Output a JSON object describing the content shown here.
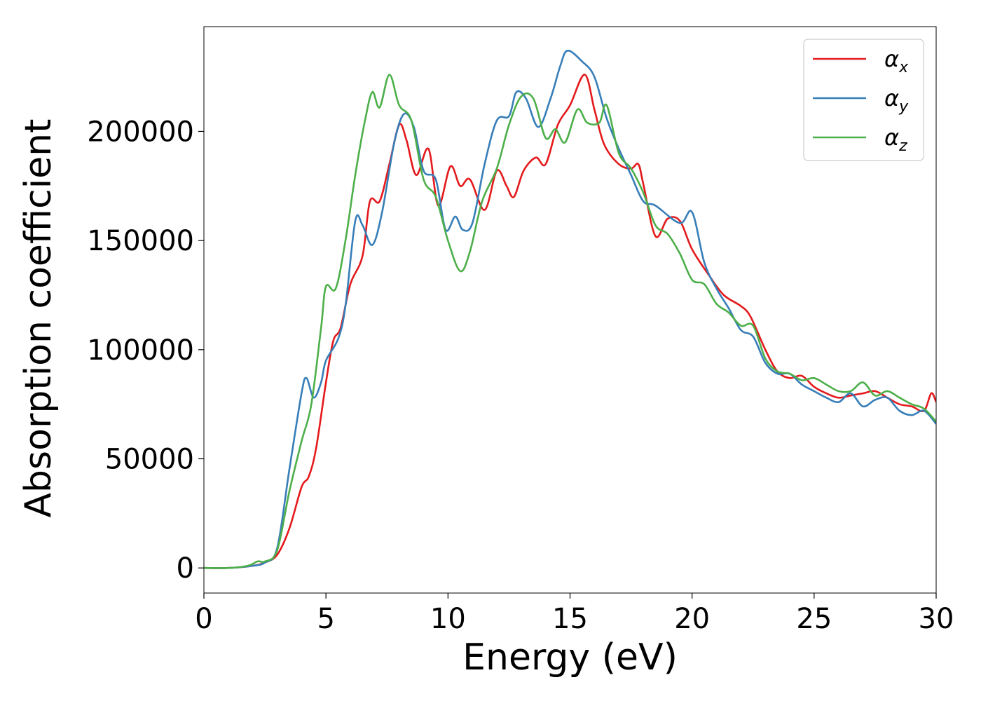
{
  "chart_data": {
    "type": "line",
    "xlabel": "Energy (eV)",
    "ylabel": "Absorption coefficient",
    "xlim": [
      0,
      30
    ],
    "ylim": [
      -11500,
      248000
    ],
    "xticks": [
      0,
      5,
      10,
      15,
      20,
      25,
      30
    ],
    "xtick_labels": [
      "0",
      "5",
      "10",
      "15",
      "20",
      "25",
      "30"
    ],
    "yticks": [
      0,
      50000,
      100000,
      150000,
      200000
    ],
    "ytick_labels": [
      "0",
      "50000",
      "100000",
      "150000",
      "200000"
    ],
    "grid": false,
    "legend_position": "top-right",
    "series": [
      {
        "name": "αx",
        "legend_main": "α",
        "legend_sub": "x",
        "color": "#e41a1c",
        "points": [
          [
            0,
            0
          ],
          [
            1,
            0
          ],
          [
            2,
            1000
          ],
          [
            2.5,
            2500
          ],
          [
            3,
            6000
          ],
          [
            3.5,
            18000
          ],
          [
            4,
            37000
          ],
          [
            4.3,
            42000
          ],
          [
            4.6,
            55000
          ],
          [
            5,
            85000
          ],
          [
            5.3,
            104000
          ],
          [
            5.6,
            110000
          ],
          [
            6,
            130000
          ],
          [
            6.5,
            143000
          ],
          [
            6.8,
            168000
          ],
          [
            7.2,
            168000
          ],
          [
            7.6,
            185000
          ],
          [
            8,
            203000
          ],
          [
            8.3,
            196000
          ],
          [
            8.7,
            180000
          ],
          [
            9.2,
            192000
          ],
          [
            9.6,
            166000
          ],
          [
            10.1,
            184000
          ],
          [
            10.5,
            175000
          ],
          [
            10.9,
            178000
          ],
          [
            11.5,
            164000
          ],
          [
            12,
            182000
          ],
          [
            12.4,
            175000
          ],
          [
            12.7,
            170000
          ],
          [
            13.1,
            182000
          ],
          [
            13.6,
            188000
          ],
          [
            14,
            185000
          ],
          [
            14.5,
            203000
          ],
          [
            15,
            212000
          ],
          [
            15.6,
            226000
          ],
          [
            16,
            210000
          ],
          [
            16.4,
            194000
          ],
          [
            17,
            185000
          ],
          [
            17.5,
            183000
          ],
          [
            17.8,
            185000
          ],
          [
            18,
            176000
          ],
          [
            18.5,
            152000
          ],
          [
            19,
            160000
          ],
          [
            19.5,
            159000
          ],
          [
            20,
            146000
          ],
          [
            20.7,
            134000
          ],
          [
            21.3,
            125000
          ],
          [
            22,
            120000
          ],
          [
            22.4,
            115000
          ],
          [
            23,
            100000
          ],
          [
            23.5,
            90000
          ],
          [
            24,
            87000
          ],
          [
            24.5,
            88000
          ],
          [
            25,
            83000
          ],
          [
            25.5,
            80000
          ],
          [
            26,
            78000
          ],
          [
            26.5,
            79000
          ],
          [
            27,
            80000
          ],
          [
            27.5,
            81000
          ],
          [
            28,
            78000
          ],
          [
            28.5,
            75000
          ],
          [
            29,
            74000
          ],
          [
            29.5,
            72000
          ],
          [
            29.8,
            80000
          ],
          [
            30,
            76000
          ]
        ]
      },
      {
        "name": "αy",
        "legend_main": "α",
        "legend_sub": "y",
        "color": "#377eb8",
        "points": [
          [
            0,
            0
          ],
          [
            1,
            0
          ],
          [
            2,
            1000
          ],
          [
            2.5,
            2500
          ],
          [
            3,
            9000
          ],
          [
            3.5,
            45000
          ],
          [
            4,
            80000
          ],
          [
            4.2,
            87000
          ],
          [
            4.5,
            78000
          ],
          [
            4.8,
            85000
          ],
          [
            5,
            95000
          ],
          [
            5.5,
            105000
          ],
          [
            5.8,
            120000
          ],
          [
            6.2,
            159000
          ],
          [
            6.5,
            157000
          ],
          [
            6.9,
            148000
          ],
          [
            7.3,
            163000
          ],
          [
            7.8,
            195000
          ],
          [
            8.2,
            208000
          ],
          [
            8.6,
            202000
          ],
          [
            9,
            182000
          ],
          [
            9.5,
            178000
          ],
          [
            9.9,
            155000
          ],
          [
            10.3,
            161000
          ],
          [
            10.6,
            155000
          ],
          [
            11,
            158000
          ],
          [
            11.5,
            185000
          ],
          [
            12,
            205000
          ],
          [
            12.5,
            207000
          ],
          [
            12.8,
            218000
          ],
          [
            13.2,
            215000
          ],
          [
            13.7,
            202000
          ],
          [
            14.2,
            215000
          ],
          [
            14.6,
            230000
          ],
          [
            14.9,
            237000
          ],
          [
            15.5,
            232000
          ],
          [
            16,
            225000
          ],
          [
            16.5,
            206000
          ],
          [
            17,
            192000
          ],
          [
            17.5,
            180000
          ],
          [
            18,
            168000
          ],
          [
            18.5,
            166000
          ],
          [
            19.5,
            158000
          ],
          [
            20,
            163000
          ],
          [
            20.5,
            140000
          ],
          [
            21,
            128000
          ],
          [
            21.5,
            119000
          ],
          [
            22,
            109000
          ],
          [
            22.5,
            106000
          ],
          [
            23,
            94000
          ],
          [
            23.5,
            89000
          ],
          [
            24,
            89000
          ],
          [
            24.5,
            84000
          ],
          [
            25,
            81000
          ],
          [
            25.5,
            78000
          ],
          [
            26,
            76000
          ],
          [
            26.5,
            80000
          ],
          [
            27,
            74000
          ],
          [
            27.5,
            77000
          ],
          [
            28,
            78000
          ],
          [
            28.5,
            72000
          ],
          [
            29,
            70000
          ],
          [
            29.5,
            72000
          ],
          [
            30,
            66000
          ]
        ]
      },
      {
        "name": "αz",
        "legend_main": "α",
        "legend_sub": "z",
        "color": "#4daf4a",
        "points": [
          [
            0,
            0
          ],
          [
            1,
            0
          ],
          [
            1.8,
            1000
          ],
          [
            2.2,
            3000
          ],
          [
            2.5,
            3000
          ],
          [
            3,
            8000
          ],
          [
            3.5,
            35000
          ],
          [
            4,
            58000
          ],
          [
            4.4,
            75000
          ],
          [
            4.8,
            110000
          ],
          [
            5,
            129000
          ],
          [
            5.4,
            128000
          ],
          [
            5.8,
            150000
          ],
          [
            6.2,
            180000
          ],
          [
            6.6,
            205000
          ],
          [
            6.9,
            218000
          ],
          [
            7.2,
            211000
          ],
          [
            7.6,
            226000
          ],
          [
            8,
            212000
          ],
          [
            8.5,
            205000
          ],
          [
            9,
            178000
          ],
          [
            9.5,
            170000
          ],
          [
            10,
            150000
          ],
          [
            10.5,
            136000
          ],
          [
            10.9,
            145000
          ],
          [
            11.4,
            168000
          ],
          [
            12,
            183000
          ],
          [
            12.5,
            203000
          ],
          [
            13,
            216000
          ],
          [
            13.5,
            215000
          ],
          [
            14,
            197000
          ],
          [
            14.4,
            201000
          ],
          [
            14.8,
            195000
          ],
          [
            15.3,
            210000
          ],
          [
            15.7,
            204000
          ],
          [
            16.2,
            204000
          ],
          [
            16.5,
            212000
          ],
          [
            17,
            190000
          ],
          [
            17.5,
            183000
          ],
          [
            18,
            172000
          ],
          [
            18.5,
            157000
          ],
          [
            19,
            153000
          ],
          [
            19.5,
            144000
          ],
          [
            20,
            132000
          ],
          [
            20.5,
            130000
          ],
          [
            21,
            121000
          ],
          [
            21.5,
            117000
          ],
          [
            22,
            111000
          ],
          [
            22.5,
            111000
          ],
          [
            23,
            96000
          ],
          [
            23.5,
            90000
          ],
          [
            24,
            89000
          ],
          [
            24.5,
            86000
          ],
          [
            25,
            87000
          ],
          [
            25.5,
            84000
          ],
          [
            26,
            81000
          ],
          [
            26.5,
            81000
          ],
          [
            27,
            85000
          ],
          [
            27.5,
            79000
          ],
          [
            28,
            81000
          ],
          [
            28.5,
            78000
          ],
          [
            29,
            75000
          ],
          [
            29.5,
            73000
          ],
          [
            30,
            67000
          ]
        ]
      }
    ]
  }
}
